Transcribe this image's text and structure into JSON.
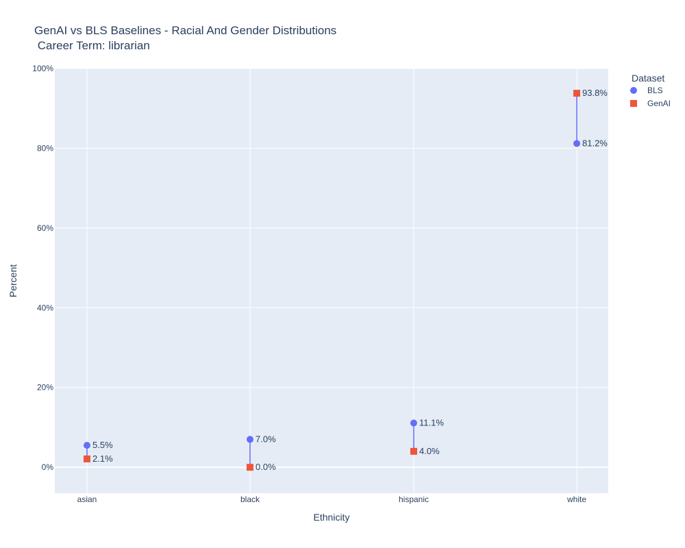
{
  "chart_data": {
    "type": "scatter",
    "title_line1": "GenAI vs BLS Baselines -  Racial And Gender Distributions",
    "title_line2": " Career Term: librarian",
    "xlabel": "Ethnicity",
    "ylabel": "Percent",
    "categories": [
      "asian",
      "black",
      "hispanic",
      "white"
    ],
    "ylim": [
      -6.5,
      100
    ],
    "yticks": [
      0,
      20,
      40,
      60,
      80,
      100
    ],
    "ytick_labels": [
      "0%",
      "20%",
      "40%",
      "60%",
      "80%",
      "100%"
    ],
    "grid": true,
    "legend": {
      "title": "Dataset",
      "placement": "top-right"
    },
    "series": [
      {
        "name": "BLS",
        "marker": "circle",
        "color": "#636efa",
        "values": [
          5.5,
          7.0,
          11.1,
          81.2
        ],
        "labels": [
          "5.5%",
          "7.0%",
          "11.1%",
          "81.2%"
        ]
      },
      {
        "name": "GenAI",
        "marker": "square",
        "color": "#ef553b",
        "values": [
          2.1,
          0.0,
          4.0,
          93.8
        ],
        "labels": [
          "2.1%",
          "0.0%",
          "4.0%",
          "93.8%"
        ]
      }
    ],
    "connector_color": "#636efa",
    "plot_bg": "#e5ecf6",
    "grid_color": "#ffffff"
  }
}
